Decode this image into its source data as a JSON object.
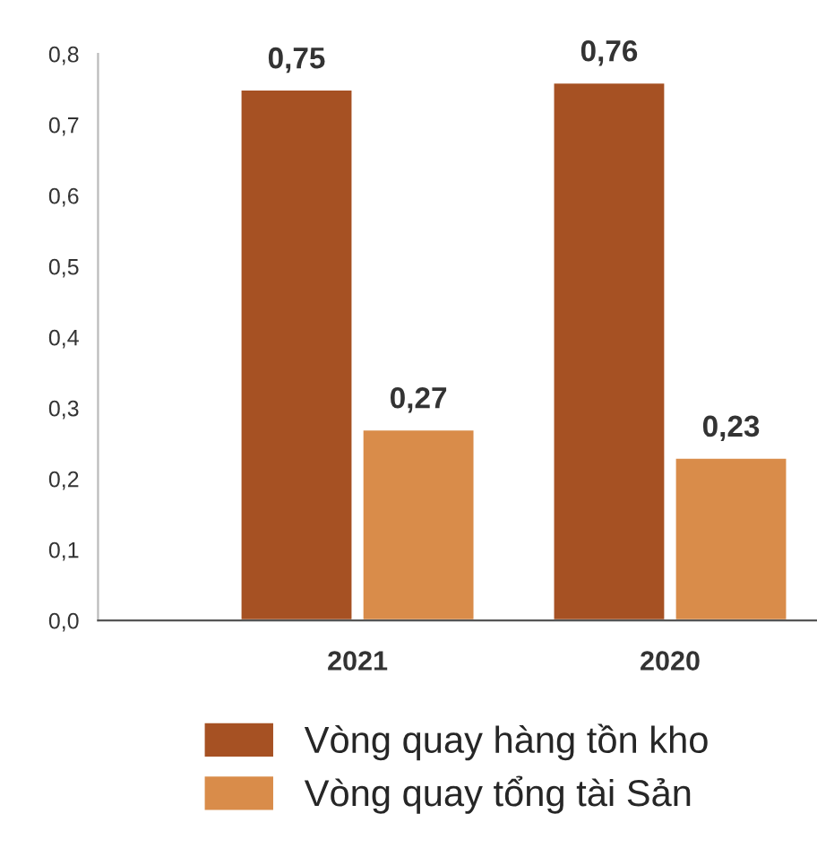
{
  "chart_data": {
    "type": "bar",
    "categories": [
      "2021",
      "2020"
    ],
    "series": [
      {
        "name": "Vòng quay hàng tồn kho",
        "color": "#a65123",
        "values": [
          0.75,
          0.76
        ],
        "value_labels": [
          "0,75",
          "0,76"
        ]
      },
      {
        "name": "Vòng quay tổng tài Sản",
        "color": "#d98c4a",
        "values": [
          0.27,
          0.23
        ],
        "value_labels": [
          "0,27",
          "0,23"
        ]
      }
    ],
    "ylim": [
      0,
      0.8
    ],
    "yticks": [
      {
        "value": 0,
        "label": "0,0"
      },
      {
        "value": 0.1,
        "label": "0,1"
      },
      {
        "value": 0.2,
        "label": "0,2"
      },
      {
        "value": 0.3,
        "label": "0,3"
      },
      {
        "value": 0.4,
        "label": "0,4"
      },
      {
        "value": 0.5,
        "label": "0,5"
      },
      {
        "value": 0.6,
        "label": "0,6"
      },
      {
        "value": 0.7,
        "label": "0,7"
      },
      {
        "value": 0.8,
        "label": "0,8"
      }
    ],
    "grid": false,
    "legend": "bottom"
  }
}
